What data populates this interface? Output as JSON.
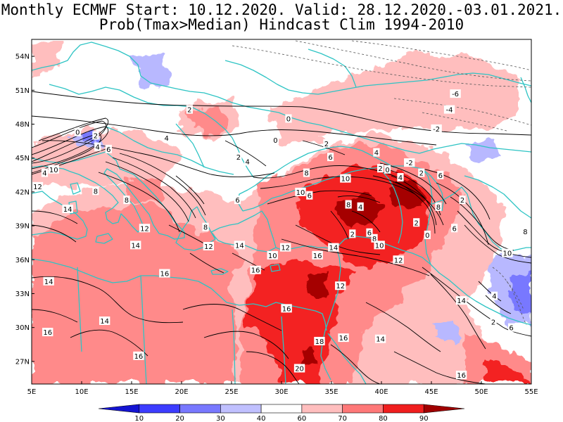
{
  "title_line1": "Monthly ECMWF Start: 10.12.2020. Valid: 28.12.2020.-03.01.2021.",
  "title_line2": "Prob(Tmax>Median) Hindcast Clim 1994-2010",
  "axes": {
    "lon_labels": [
      "5E",
      "10E",
      "15E",
      "20E",
      "25E",
      "30E",
      "35E",
      "40E",
      "45E",
      "50E",
      "55E"
    ],
    "lon_values": [
      5,
      10,
      15,
      20,
      25,
      30,
      35,
      40,
      45,
      50,
      55
    ],
    "lat_labels": [
      "27N",
      "30N",
      "33N",
      "36N",
      "39N",
      "42N",
      "45N",
      "48N",
      "51N",
      "54N"
    ],
    "lat_values": [
      27,
      30,
      33,
      36,
      39,
      42,
      45,
      48,
      51,
      54
    ],
    "lon_range": [
      5,
      55
    ],
    "lat_range": [
      25,
      55.5
    ]
  },
  "colorbar": {
    "labels": [
      "10",
      "20",
      "30",
      "40",
      "60",
      "70",
      "80",
      "90"
    ],
    "colors": [
      "#1414d2",
      "#3c3cff",
      "#7878ff",
      "#c0c0ff",
      "#ffffff",
      "#ffbebe",
      "#ff7878",
      "#f01e1e",
      "#a00000"
    ]
  },
  "colors": {
    "coastline": "#2ec4c4",
    "contour": "#000000",
    "background": "#ffffff"
  },
  "contour_labels": [
    {
      "text": "0",
      "lon": 30.7,
      "lat": 48.5
    },
    {
      "text": "-2",
      "lon": 45.5,
      "lat": 47.6
    },
    {
      "text": "-4",
      "lon": 46.8,
      "lat": 49.3
    },
    {
      "text": "-6",
      "lon": 47.4,
      "lat": 50.7
    },
    {
      "text": "2",
      "lon": 20.8,
      "lat": 49.3
    },
    {
      "text": "4",
      "lon": 18.5,
      "lat": 46.8
    },
    {
      "text": "2",
      "lon": 34.5,
      "lat": 46.3
    },
    {
      "text": "4",
      "lon": 39.5,
      "lat": 45.5
    },
    {
      "text": "2",
      "lon": 25.7,
      "lat": 45.1
    },
    {
      "text": "4",
      "lon": 26.6,
      "lat": 44.7
    },
    {
      "text": "0",
      "lon": 29.4,
      "lat": 46.6
    },
    {
      "text": "6",
      "lon": 34.9,
      "lat": 45.1
    },
    {
      "text": "8",
      "lon": 32.5,
      "lat": 43.7
    },
    {
      "text": "-2",
      "lon": 42.8,
      "lat": 44.6
    },
    {
      "text": "2",
      "lon": 44.0,
      "lat": 43.7
    },
    {
      "text": "0",
      "lon": 9.6,
      "lat": 47.3
    },
    {
      "text": "2",
      "lon": 11.4,
      "lat": 47.0
    },
    {
      "text": "4",
      "lon": 11.6,
      "lat": 46.0
    },
    {
      "text": "6",
      "lon": 12.7,
      "lat": 45.8
    },
    {
      "text": "10",
      "lon": 7.2,
      "lat": 44.0
    },
    {
      "text": "4",
      "lon": 6.3,
      "lat": 43.7
    },
    {
      "text": "12",
      "lon": 5.6,
      "lat": 42.5
    },
    {
      "text": "8",
      "lon": 11.4,
      "lat": 42.1
    },
    {
      "text": "8",
      "lon": 14.5,
      "lat": 41.3
    },
    {
      "text": "14",
      "lon": 8.6,
      "lat": 40.5
    },
    {
      "text": "12",
      "lon": 16.3,
      "lat": 38.8
    },
    {
      "text": "14",
      "lon": 15.4,
      "lat": 37.3
    },
    {
      "text": "8",
      "lon": 22.4,
      "lat": 38.9
    },
    {
      "text": "12",
      "lon": 22.7,
      "lat": 37.2
    },
    {
      "text": "14",
      "lon": 25.8,
      "lat": 37.3
    },
    {
      "text": "6",
      "lon": 25.6,
      "lat": 41.3
    },
    {
      "text": "10",
      "lon": 36.4,
      "lat": 43.2
    },
    {
      "text": "10",
      "lon": 31.9,
      "lat": 42.0
    },
    {
      "text": "6",
      "lon": 32.8,
      "lat": 41.7
    },
    {
      "text": "8",
      "lon": 36.7,
      "lat": 40.9
    },
    {
      "text": "4",
      "lon": 37.9,
      "lat": 40.7
    },
    {
      "text": "2",
      "lon": 37.1,
      "lat": 38.3
    },
    {
      "text": "6",
      "lon": 38.8,
      "lat": 38.4
    },
    {
      "text": "8",
      "lon": 39.3,
      "lat": 37.9
    },
    {
      "text": "10",
      "lon": 39.8,
      "lat": 37.3
    },
    {
      "text": "12",
      "lon": 41.7,
      "lat": 36.0
    },
    {
      "text": "2",
      "lon": 39.9,
      "lat": 44.1
    },
    {
      "text": "0",
      "lon": 40.6,
      "lat": 44.0
    },
    {
      "text": "4",
      "lon": 41.9,
      "lat": 43.3
    },
    {
      "text": "6",
      "lon": 45.9,
      "lat": 43.5
    },
    {
      "text": "2",
      "lon": 43.5,
      "lat": 39.3
    },
    {
      "text": "2",
      "lon": 48.1,
      "lat": 41.3
    },
    {
      "text": "8",
      "lon": 45.7,
      "lat": 40.7
    },
    {
      "text": "0",
      "lon": 44.6,
      "lat": 38.2
    },
    {
      "text": "6",
      "lon": 47.3,
      "lat": 38.8
    },
    {
      "text": "8",
      "lon": 54.4,
      "lat": 38.5
    },
    {
      "text": "10",
      "lon": 52.6,
      "lat": 36.6
    },
    {
      "text": "6",
      "lon": 53.0,
      "lat": 30.0
    },
    {
      "text": "4",
      "lon": 51.3,
      "lat": 32.8
    },
    {
      "text": "2",
      "lon": 51.2,
      "lat": 30.5
    },
    {
      "text": "14",
      "lon": 48.0,
      "lat": 32.4
    },
    {
      "text": "16",
      "lon": 48.0,
      "lat": 25.8
    },
    {
      "text": "10",
      "lon": 29.1,
      "lat": 36.4
    },
    {
      "text": "12",
      "lon": 30.4,
      "lat": 37.1
    },
    {
      "text": "16",
      "lon": 33.6,
      "lat": 36.4
    },
    {
      "text": "14",
      "lon": 35.2,
      "lat": 37.1
    },
    {
      "text": "16",
      "lon": 27.4,
      "lat": 35.1
    },
    {
      "text": "12",
      "lon": 35.9,
      "lat": 33.7
    },
    {
      "text": "16",
      "lon": 30.5,
      "lat": 31.7
    },
    {
      "text": "16",
      "lon": 36.2,
      "lat": 29.1
    },
    {
      "text": "18",
      "lon": 33.8,
      "lat": 28.8
    },
    {
      "text": "14",
      "lon": 39.9,
      "lat": 29.0
    },
    {
      "text": "20",
      "lon": 31.8,
      "lat": 26.4
    },
    {
      "text": "16",
      "lon": 18.3,
      "lat": 34.8
    },
    {
      "text": "14",
      "lon": 6.7,
      "lat": 34.1
    },
    {
      "text": "14",
      "lon": 12.3,
      "lat": 30.6
    },
    {
      "text": "16",
      "lon": 6.6,
      "lat": 29.6
    },
    {
      "text": "16",
      "lon": 15.7,
      "lat": 27.5
    }
  ]
}
